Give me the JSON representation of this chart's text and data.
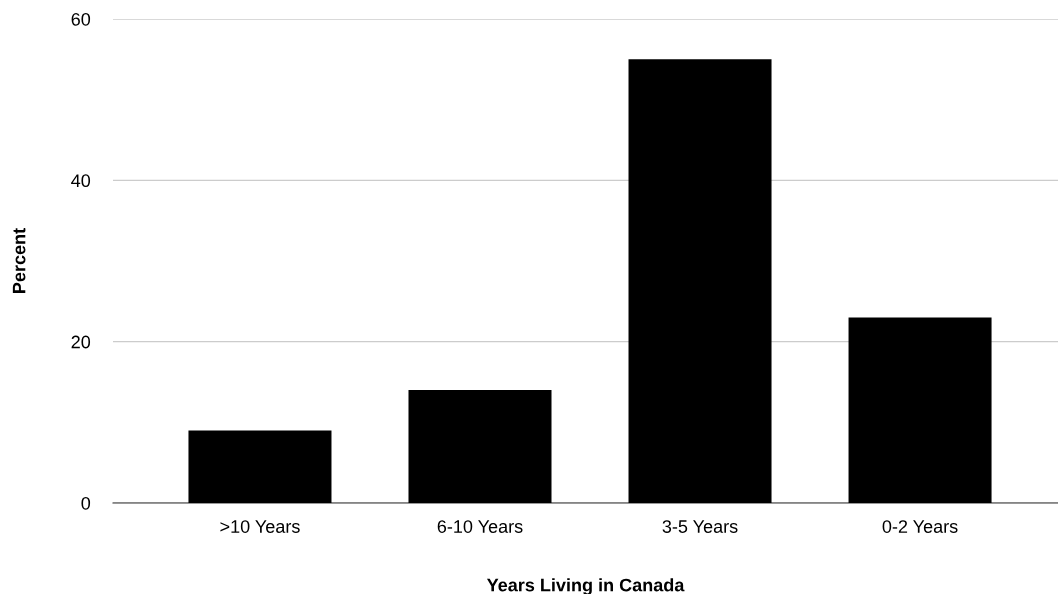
{
  "chart_data": {
    "type": "bar",
    "xlabel": "Years Living in Canada",
    "ylabel": "Percent",
    "categories": [
      ">10 Years",
      "6-10 Years",
      "3-5 Years",
      "0-2 Years"
    ],
    "values": [
      9,
      14,
      55,
      23
    ],
    "color": "#000000",
    "ylim": [
      0,
      60
    ],
    "yticks": [
      0,
      20,
      40,
      60
    ],
    "grid": "y",
    "legend": false
  }
}
